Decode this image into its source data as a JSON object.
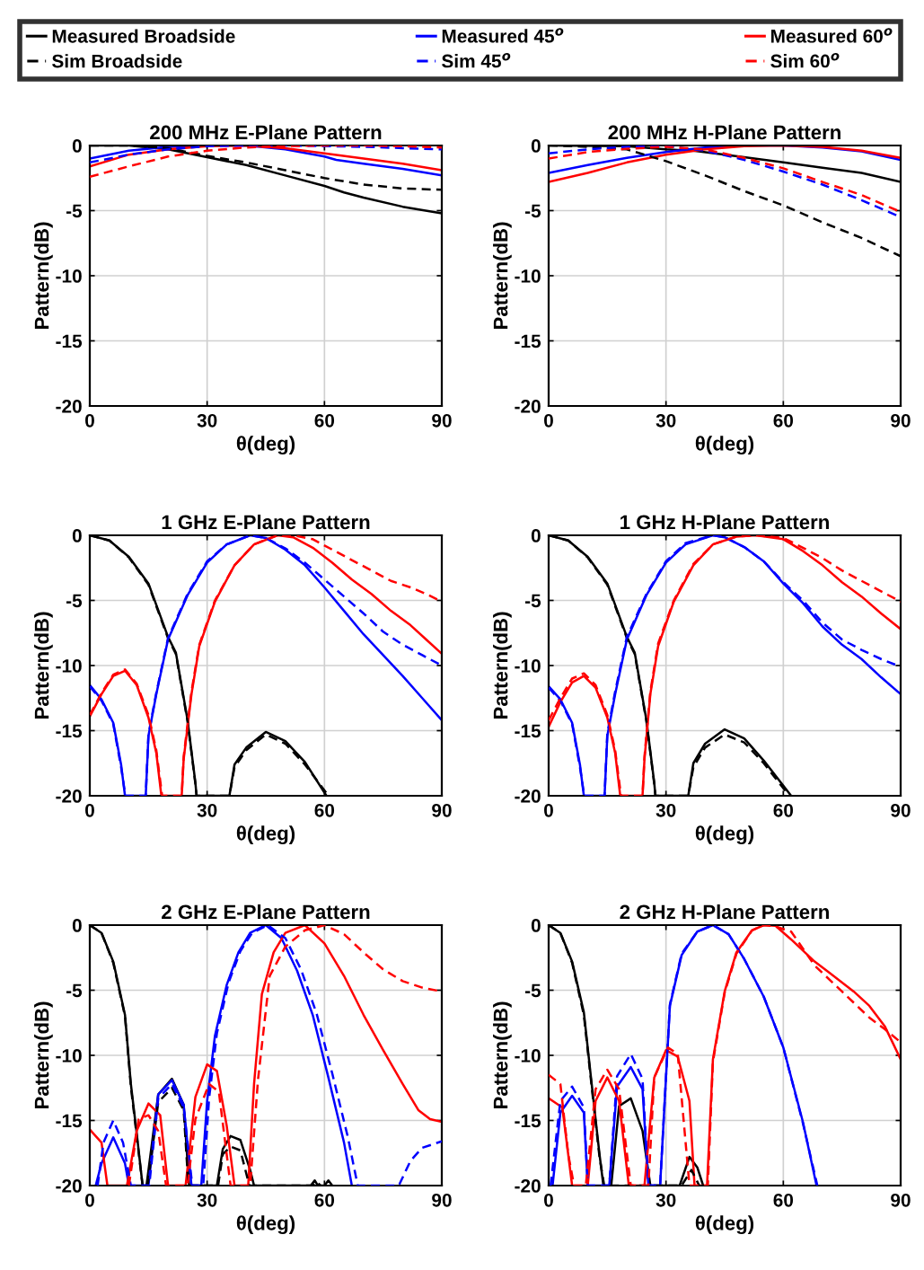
{
  "chart_data": [
    {
      "type": "line",
      "title": "200 MHz E-Plane Pattern",
      "xlabel": "θ(deg)",
      "ylabel": "Pattern(dB)",
      "xlim": [
        0,
        90
      ],
      "ylim": [
        -20,
        0
      ],
      "xticks": [
        0,
        30,
        60,
        90
      ],
      "yticks": [
        -20,
        -15,
        -10,
        -5,
        0
      ],
      "grid": true,
      "legend": "top",
      "series": [
        {
          "name": "Measured Broadside",
          "color": "#000000",
          "line_style": "solid",
          "x": [
            0,
            10,
            20,
            30,
            40,
            50,
            60,
            65,
            70,
            80,
            90
          ],
          "values": [
            0,
            0,
            -0.3,
            -0.9,
            -1.5,
            -2.3,
            -3.1,
            -3.6,
            -4.0,
            -4.7,
            -5.2
          ]
        },
        {
          "name": "Sim Broadside",
          "color": "#000000",
          "line_style": "dashed",
          "x": [
            0,
            10,
            20,
            30,
            40,
            50,
            60,
            70,
            80,
            90
          ],
          "values": [
            0,
            0,
            -0.2,
            -0.8,
            -1.3,
            -1.9,
            -2.5,
            -3.0,
            -3.3,
            -3.4
          ]
        },
        {
          "name": "Measured 45$^{o}$",
          "color": "#0000ff",
          "line_style": "solid",
          "x": [
            0,
            10,
            20,
            30,
            40,
            50,
            60,
            63,
            70,
            80,
            90
          ],
          "values": [
            -1.0,
            -0.4,
            -0.1,
            0,
            0,
            -0.3,
            -0.85,
            -1.1,
            -1.4,
            -1.8,
            -2.3
          ]
        },
        {
          "name": "Sim 45$^{o}$",
          "color": "#0000ff",
          "line_style": "dashed",
          "x": [
            0,
            10,
            20,
            30,
            40,
            50,
            60,
            70,
            80,
            90
          ],
          "values": [
            -1.3,
            -0.7,
            -0.3,
            -0.05,
            0,
            0,
            -0.05,
            -0.1,
            -0.2,
            -0.3
          ]
        },
        {
          "name": "Measured 60$^{o}$",
          "color": "#ff0000",
          "line_style": "solid",
          "x": [
            0,
            10,
            20,
            30,
            40,
            50,
            60,
            70,
            80,
            90
          ],
          "values": [
            -1.6,
            -0.7,
            -0.3,
            -0.05,
            0,
            -0.2,
            -0.6,
            -1.0,
            -1.4,
            -1.9
          ]
        },
        {
          "name": "Sim 60$^{o}$",
          "color": "#ff0000",
          "line_style": "dashed",
          "x": [
            0,
            10,
            20,
            30,
            40,
            50,
            60,
            70,
            80,
            90
          ],
          "values": [
            -2.4,
            -1.6,
            -0.85,
            -0.4,
            -0.15,
            -0.05,
            0,
            0,
            -0.05,
            -0.15
          ]
        }
      ]
    },
    {
      "type": "line",
      "title": "200 MHz H-Plane Pattern",
      "xlabel": "θ(deg)",
      "ylabel": "Pattern(dB)",
      "xlim": [
        0,
        90
      ],
      "ylim": [
        -20,
        0
      ],
      "xticks": [
        0,
        30,
        60,
        90
      ],
      "yticks": [
        -20,
        -15,
        -10,
        -5,
        0
      ],
      "grid": true,
      "series": [
        {
          "name": "Measured Broadside",
          "color": "#000000",
          "line_style": "solid",
          "x": [
            0,
            20,
            30,
            37,
            50,
            60,
            70,
            80,
            90
          ],
          "values": [
            0,
            -0.05,
            -0.3,
            -0.4,
            -0.9,
            -1.3,
            -1.7,
            -2.1,
            -2.8
          ]
        },
        {
          "name": "Sim Broadside",
          "color": "#000000",
          "line_style": "dashed",
          "x": [
            0,
            10,
            20,
            30,
            40,
            50,
            60,
            70,
            80,
            90
          ],
          "values": [
            0,
            -0.1,
            -0.3,
            -1.2,
            -2.3,
            -3.5,
            -4.6,
            -5.9,
            -7.1,
            -8.5
          ]
        },
        {
          "name": "Measured 45$^{o}$",
          "color": "#0000ff",
          "line_style": "solid",
          "x": [
            0,
            10,
            20,
            30,
            40,
            50,
            60,
            70,
            80,
            90
          ],
          "values": [
            -2.1,
            -1.5,
            -0.95,
            -0.5,
            -0.15,
            0,
            0,
            -0.15,
            -0.45,
            -1.1
          ]
        },
        {
          "name": "Sim 45$^{o}$",
          "color": "#0000ff",
          "line_style": "dashed",
          "x": [
            0,
            10,
            20,
            30,
            40,
            50,
            60,
            70,
            80,
            90
          ],
          "values": [
            -0.6,
            -0.3,
            -0.1,
            -0.05,
            -0.4,
            -1.1,
            -2.0,
            -3.0,
            -4.2,
            -5.5
          ]
        },
        {
          "name": "Measured 60$^{o}$",
          "color": "#ff0000",
          "line_style": "solid",
          "x": [
            0,
            10,
            20,
            30,
            40,
            50,
            60,
            70,
            80,
            90
          ],
          "values": [
            -2.8,
            -2.1,
            -1.3,
            -0.7,
            -0.3,
            -0.05,
            0,
            -0.1,
            -0.4,
            -0.95
          ]
        },
        {
          "name": "Sim 60$^{o}$",
          "color": "#ff0000",
          "line_style": "dashed",
          "x": [
            0,
            10,
            20,
            30,
            40,
            50,
            60,
            70,
            80,
            90
          ],
          "values": [
            -1.0,
            -0.5,
            -0.25,
            -0.1,
            -0.3,
            -0.95,
            -1.75,
            -2.8,
            -3.8,
            -5.1
          ]
        }
      ]
    },
    {
      "type": "line",
      "title": "1 GHz E-Plane Pattern",
      "xlabel": "θ(deg)",
      "ylabel": "Pattern(dB)",
      "xlim": [
        0,
        90
      ],
      "ylim": [
        -20,
        0
      ],
      "xticks": [
        0,
        30,
        60,
        90
      ],
      "yticks": [
        -20,
        -15,
        -10,
        -5,
        0
      ],
      "grid": true,
      "series": [
        {
          "name": "Measured Broadside",
          "color": "#000000",
          "line_style": "solid",
          "x": [
            0,
            5,
            10,
            15,
            20,
            22,
            25,
            27,
            27.3,
            35.7,
            37,
            40,
            45,
            50,
            55,
            60.5
          ],
          "values": [
            0,
            -0.4,
            -1.65,
            -3.7,
            -7.8,
            -9,
            -14.2,
            -19,
            -20,
            -20,
            -17.6,
            -16.3,
            -15.1,
            -15.8,
            -17.4,
            -20
          ]
        },
        {
          "name": "Sim Broadside",
          "color": "#000000",
          "line_style": "dashed",
          "x": [
            0,
            5,
            10,
            15,
            20,
            22,
            25,
            27,
            27.3,
            35.7,
            37,
            40,
            45,
            50,
            55,
            61
          ],
          "values": [
            0,
            -0.4,
            -1.7,
            -3.8,
            -7.9,
            -9.1,
            -14.3,
            -19.1,
            -20,
            -20,
            -17.8,
            -16.5,
            -15.3,
            -16.0,
            -17.6,
            -20
          ]
        },
        {
          "name": "Measured 45$^{o}$",
          "color": "#0000ff",
          "line_style": "solid",
          "x": [
            0,
            3,
            6,
            8,
            9,
            14.3,
            15,
            17,
            20,
            25,
            30,
            35,
            41,
            45,
            50,
            55,
            60,
            65,
            70,
            75,
            80,
            85,
            90
          ],
          "values": [
            -11.5,
            -12.6,
            -14.4,
            -17.6,
            -20,
            -20,
            -15.4,
            -12.2,
            -8,
            -4.6,
            -2.1,
            -0.7,
            0,
            -0.2,
            -1.1,
            -2.3,
            -4.0,
            -5.8,
            -7.6,
            -9.2,
            -10.8,
            -12.5,
            -14.2
          ]
        },
        {
          "name": "Sim 45$^{o}$",
          "color": "#0000ff",
          "line_style": "dashed",
          "x": [
            0,
            3,
            6,
            8,
            9.1,
            14.3,
            15,
            17,
            20,
            25,
            30,
            35,
            41,
            45,
            50,
            55,
            60,
            65,
            70,
            75,
            80,
            85,
            90
          ],
          "values": [
            -11.6,
            -12.7,
            -14.5,
            -17.8,
            -20,
            -20,
            -15.3,
            -12.1,
            -7.9,
            -4.5,
            -2.0,
            -0.7,
            0,
            -0.2,
            -1.0,
            -2.1,
            -3.4,
            -4.7,
            -6.0,
            -7.4,
            -8.4,
            -9.2,
            -10.0
          ]
        },
        {
          "name": "Measured 60$^{o}$",
          "color": "#ff0000",
          "line_style": "solid",
          "x": [
            0,
            3,
            6,
            9,
            12,
            15,
            17,
            18.3,
            23.5,
            24,
            26,
            28,
            32,
            37,
            42,
            48,
            52,
            57,
            62,
            67,
            72,
            77,
            82,
            86,
            90
          ],
          "values": [
            -13.9,
            -12.2,
            -10.8,
            -10.4,
            -11.5,
            -14,
            -16.7,
            -20,
            -20,
            -17.2,
            -12.2,
            -8.5,
            -5.1,
            -2.3,
            -0.7,
            0,
            -0.15,
            -0.95,
            -2.1,
            -3.4,
            -4.5,
            -5.8,
            -6.9,
            -8.0,
            -9.1
          ]
        },
        {
          "name": "Sim 60$^{o}$",
          "color": "#ff0000",
          "line_style": "dashed",
          "x": [
            0,
            3,
            6,
            9,
            12,
            15,
            17,
            18.5,
            23.5,
            24,
            26,
            28,
            32,
            37,
            42,
            48,
            52,
            57,
            62,
            67,
            72,
            77,
            82,
            86,
            90
          ],
          "values": [
            -13.8,
            -12.1,
            -10.7,
            -10.3,
            -11.4,
            -13.8,
            -16.5,
            -20,
            -20,
            -17.0,
            -12.0,
            -8.4,
            -5.0,
            -2.3,
            -0.7,
            0,
            0,
            -0.3,
            -1.1,
            -1.9,
            -2.7,
            -3.5,
            -4.0,
            -4.5,
            -5.1
          ]
        }
      ]
    },
    {
      "type": "line",
      "title": "1 GHz H-Plane Pattern",
      "xlabel": "θ(deg)",
      "ylabel": "Pattern(dB)",
      "xlim": [
        0,
        90
      ],
      "ylim": [
        -20,
        0
      ],
      "xticks": [
        0,
        30,
        60,
        90
      ],
      "yticks": [
        -20,
        -15,
        -10,
        -5,
        0
      ],
      "grid": true,
      "series": [
        {
          "name": "Measured Broadside",
          "color": "#000000",
          "line_style": "solid",
          "x": [
            0,
            5,
            10,
            15,
            20,
            22,
            25,
            27,
            27.3,
            35.7,
            37,
            40,
            45,
            50,
            55,
            62
          ],
          "values": [
            0,
            -0.4,
            -1.65,
            -3.7,
            -7.8,
            -9,
            -14.2,
            -19,
            -20,
            -20,
            -17.5,
            -16.0,
            -14.9,
            -15.6,
            -17.3,
            -20
          ]
        },
        {
          "name": "Sim Broadside",
          "color": "#000000",
          "line_style": "dashed",
          "x": [
            0,
            5,
            10,
            15,
            20,
            22,
            25,
            27,
            27.3,
            35.7,
            37,
            40,
            45,
            50,
            55,
            61.5
          ],
          "values": [
            0,
            -0.4,
            -1.7,
            -3.8,
            -7.9,
            -9.1,
            -14.3,
            -19.1,
            -20,
            -20,
            -17.8,
            -16.3,
            -15.3,
            -15.9,
            -17.5,
            -20
          ]
        },
        {
          "name": "Measured 45$^{o}$",
          "color": "#0000ff",
          "line_style": "solid",
          "x": [
            0,
            3,
            6,
            8,
            9,
            14.3,
            15,
            17,
            20,
            25,
            30,
            35,
            42,
            45,
            50,
            55,
            60,
            65,
            70,
            75,
            80,
            85,
            90
          ],
          "values": [
            -11.6,
            -12.6,
            -14.4,
            -17.6,
            -20,
            -20,
            -15.4,
            -12.2,
            -8,
            -4.6,
            -2.1,
            -0.7,
            0,
            -0.15,
            -0.9,
            -2.0,
            -3.7,
            -5.2,
            -7.0,
            -8.4,
            -9.5,
            -10.9,
            -12.2
          ]
        },
        {
          "name": "Sim 45$^{o}$",
          "color": "#0000ff",
          "line_style": "dashed",
          "x": [
            0,
            3,
            6,
            8,
            9.1,
            14.3,
            15,
            17,
            20,
            25,
            30,
            35,
            42,
            45,
            50,
            55,
            60,
            65,
            70,
            75,
            80,
            85,
            90
          ],
          "values": [
            -11.7,
            -12.7,
            -14.5,
            -17.8,
            -20,
            -20,
            -15.2,
            -12.0,
            -7.8,
            -4.5,
            -2.0,
            -0.6,
            0,
            -0.15,
            -0.9,
            -2.0,
            -3.6,
            -5.0,
            -6.7,
            -8.0,
            -8.8,
            -9.5,
            -10.1
          ]
        },
        {
          "name": "Measured 60$^{o}$",
          "color": "#ff0000",
          "line_style": "solid",
          "x": [
            0,
            3,
            6,
            9,
            12,
            15,
            17,
            18.3,
            24,
            24.5,
            26,
            28,
            32,
            37,
            42,
            48,
            53,
            60,
            65,
            70,
            75,
            80,
            85,
            90
          ],
          "values": [
            -14.7,
            -12.8,
            -11.3,
            -10.8,
            -11.7,
            -14,
            -16.7,
            -20,
            -20,
            -17.2,
            -12.2,
            -8.5,
            -5.1,
            -2.3,
            -0.7,
            -0.1,
            0,
            -0.3,
            -1.2,
            -2.3,
            -3.6,
            -4.7,
            -6.0,
            -7.2
          ]
        },
        {
          "name": "Sim 60$^{o}$",
          "color": "#ff0000",
          "line_style": "dashed",
          "x": [
            0,
            3,
            6,
            9,
            12,
            15,
            17,
            18.5,
            24,
            24.5,
            26,
            28,
            32,
            37,
            42,
            48,
            53,
            60,
            65,
            70,
            75,
            80,
            85,
            90
          ],
          "values": [
            -14.2,
            -12.5,
            -11,
            -10.6,
            -11.5,
            -13.8,
            -16.5,
            -20,
            -20,
            -17.0,
            -12.0,
            -8.3,
            -5.0,
            -2.2,
            -0.7,
            -0.1,
            0,
            -0.2,
            -0.95,
            -1.75,
            -2.7,
            -3.5,
            -4.3,
            -5.1
          ]
        }
      ]
    },
    {
      "type": "line",
      "title": "2 GHz E-Plane Pattern",
      "xlabel": "θ(deg)",
      "ylabel": "Pattern(dB)",
      "xlim": [
        0,
        90
      ],
      "ylim": [
        -20,
        0
      ],
      "xticks": [
        0,
        30,
        60,
        90
      ],
      "yticks": [
        -20,
        -15,
        -10,
        -5,
        0
      ],
      "grid": true,
      "series": [
        {
          "name": "Measured Broadside",
          "color": "#000000",
          "line_style": "solid",
          "x": [
            0,
            3,
            6,
            9,
            10.5,
            12,
            13.5,
            14.5,
            17.5,
            21,
            24,
            25.4,
            32.5,
            34,
            36,
            38.5,
            41,
            42,
            56.5,
            57.5,
            58.3,
            60,
            61,
            62
          ],
          "values": [
            0,
            -0.6,
            -2.8,
            -6.9,
            -12.2,
            -16,
            -20,
            -20,
            -13,
            -11.8,
            -13.8,
            -20,
            -20,
            -17.2,
            -16.2,
            -16.5,
            -18.8,
            -20,
            -20,
            -19.6,
            -20,
            -20,
            -19.6,
            -20
          ]
        },
        {
          "name": "Sim Broadside",
          "color": "#000000",
          "line_style": "dashed",
          "x": [
            0,
            3,
            6,
            9,
            10.5,
            12,
            13.5,
            14.8,
            17.5,
            21,
            24,
            25.2,
            32.8,
            34,
            36,
            38.5,
            40.8,
            57,
            58,
            59
          ],
          "values": [
            0,
            -0.6,
            -2.9,
            -7.0,
            -12.4,
            -16.2,
            -20,
            -20,
            -13.6,
            -12.5,
            -14.2,
            -20,
            -20,
            -17.6,
            -17.0,
            -17.3,
            -20,
            -20,
            -19.7,
            -20
          ]
        },
        {
          "name": "Measured 45$^{o}$",
          "color": "#0000ff",
          "line_style": "solid",
          "x": [
            1.5,
            3,
            6,
            9,
            10,
            15,
            17.5,
            21,
            24,
            26,
            28.5,
            30,
            32,
            35,
            38,
            41,
            45,
            49,
            53,
            57,
            61,
            65,
            67
          ],
          "values": [
            -20,
            -18.3,
            -16.3,
            -18.3,
            -20,
            -20,
            -13,
            -11.9,
            -13.8,
            -20,
            -20,
            -13.5,
            -8.5,
            -4.6,
            -2.1,
            -0.6,
            0,
            -1.0,
            -3.5,
            -6.9,
            -11.7,
            -16.7,
            -20
          ]
        },
        {
          "name": "Sim 45$^{o}$",
          "color": "#0000ff",
          "line_style": "dashed",
          "x": [
            2,
            3.5,
            6,
            8.5,
            10.5,
            15.2,
            17.5,
            21,
            24,
            26.2,
            29,
            30.5,
            32.5,
            35.5,
            38.5,
            41.5,
            45.5,
            50,
            54,
            58,
            62,
            66,
            68.5,
            79,
            82,
            85,
            90
          ],
          "values": [
            -20,
            -16.7,
            -15.0,
            -16.7,
            -20,
            -20,
            -13.3,
            -12.2,
            -14.0,
            -20,
            -20,
            -13.3,
            -8.3,
            -4.4,
            -2.0,
            -0.6,
            0,
            -1.0,
            -3.4,
            -6.8,
            -11.4,
            -16.3,
            -20,
            -20,
            -18.1,
            -17.1,
            -16.6
          ]
        },
        {
          "name": "Measured 60$^{o}$",
          "color": "#ff0000",
          "line_style": "solid",
          "x": [
            0,
            3,
            4.5,
            9.5,
            12,
            15,
            18,
            20,
            24.5,
            27,
            30,
            32.5,
            35,
            37,
            40.5,
            42,
            44,
            47,
            50,
            55,
            60,
            65,
            70,
            75,
            80,
            84,
            87,
            90
          ],
          "values": [
            -15.7,
            -16.7,
            -20,
            -20,
            -15.8,
            -13.7,
            -14.6,
            -20,
            -20,
            -13.2,
            -10.7,
            -11.2,
            -15.4,
            -20,
            -20,
            -12.2,
            -5.3,
            -2.1,
            -0.6,
            0,
            -1.4,
            -3.9,
            -6.9,
            -9.6,
            -12.2,
            -14.2,
            -14.9,
            -15.1
          ]
        },
        {
          "name": "Sim 60$^{o}$",
          "color": "#ff0000",
          "line_style": "dashed",
          "x": [
            10,
            12.5,
            15,
            17.5,
            19.5,
            25,
            27,
            30.5,
            33,
            36,
            41,
            43,
            46,
            50,
            55,
            60,
            65,
            70,
            75,
            80,
            85,
            90
          ],
          "values": [
            -20,
            -14.9,
            -14.6,
            -15.8,
            -20,
            -20,
            -14.9,
            -12.2,
            -12.8,
            -20,
            -20,
            -11.9,
            -3.9,
            -1.65,
            -0.4,
            0,
            -0.7,
            -2.1,
            -3.4,
            -4.3,
            -4.8,
            -5.1
          ]
        }
      ]
    },
    {
      "type": "line",
      "title": "2 GHz H-Plane Pattern",
      "xlabel": "θ(deg)",
      "ylabel": "Pattern(dB)",
      "xlim": [
        0,
        90
      ],
      "ylim": [
        -20,
        0
      ],
      "xticks": [
        0,
        30,
        60,
        90
      ],
      "yticks": [
        -20,
        -15,
        -10,
        -5,
        0
      ],
      "grid": true,
      "series": [
        {
          "name": "Measured Broadside",
          "color": "#000000",
          "line_style": "solid",
          "x": [
            0,
            3,
            6,
            9,
            11,
            13,
            14,
            16,
            18,
            21,
            24,
            26,
            33.5,
            36,
            38,
            39.5
          ],
          "values": [
            0,
            -0.6,
            -2.8,
            -6.7,
            -12.2,
            -17.6,
            -20,
            -20,
            -13.9,
            -13.3,
            -15.8,
            -20,
            -20,
            -17.8,
            -18.6,
            -20
          ]
        },
        {
          "name": "Sim Broadside",
          "color": "#000000",
          "line_style": "dashed",
          "x": [
            0,
            3,
            6,
            9,
            11,
            13,
            14.2,
            34,
            36.5,
            38.5
          ],
          "values": [
            0,
            -0.6,
            -2.9,
            -6.9,
            -12.4,
            -17.8,
            -20,
            -20,
            -18.8,
            -20
          ]
        },
        {
          "name": "Measured 45$^{o}$",
          "color": "#0000ff",
          "line_style": "solid",
          "x": [
            1,
            3,
            6,
            9,
            10,
            15.5,
            17.5,
            21,
            24,
            25.5,
            28.5,
            31,
            34,
            38,
            42,
            46,
            50,
            55,
            60,
            65,
            68.5
          ],
          "values": [
            -20,
            -14.4,
            -13.1,
            -14.4,
            -20,
            -20,
            -12.4,
            -10.9,
            -12.6,
            -20,
            -20,
            -6.2,
            -2.3,
            -0.5,
            0,
            -0.7,
            -2.6,
            -5.5,
            -9.4,
            -15.1,
            -20
          ]
        },
        {
          "name": "Sim 45$^{o}$",
          "color": "#0000ff",
          "line_style": "dashed",
          "x": [
            0.5,
            3,
            6,
            9,
            10,
            15.5,
            17.5,
            21,
            24,
            25.5,
            28.5,
            31,
            34,
            38,
            42,
            46,
            50,
            55,
            60,
            65,
            68.7
          ],
          "values": [
            -20,
            -13.5,
            -12.4,
            -14,
            -20,
            -20,
            -11.6,
            -9.9,
            -11.8,
            -20,
            -20,
            -6.1,
            -2.2,
            -0.5,
            0,
            -0.7,
            -2.6,
            -5.5,
            -9.4,
            -15.2,
            -20
          ]
        },
        {
          "name": "Measured 60$^{o}$",
          "color": "#ff0000",
          "line_style": "solid",
          "x": [
            0,
            3.5,
            6,
            10,
            12,
            15,
            18,
            20.5,
            24.5,
            27,
            30,
            33,
            36,
            37.3,
            40.5,
            42,
            45,
            48,
            52,
            55,
            58,
            62,
            68,
            72,
            78,
            82,
            86,
            90
          ],
          "values": [
            -13.3,
            -14,
            -20,
            -20,
            -13.5,
            -11.7,
            -13.5,
            -20,
            -20,
            -11.7,
            -9.6,
            -10.1,
            -13.5,
            -20,
            -20,
            -10.3,
            -5.1,
            -2.1,
            -0.4,
            0,
            -0.05,
            -1.1,
            -2.8,
            -3.7,
            -5.1,
            -6.2,
            -7.8,
            -10.3
          ]
        },
        {
          "name": "Sim 60$^{o}$",
          "color": "#ff0000",
          "line_style": "dashed",
          "x": [
            0,
            3,
            5,
            6.5,
            9.5,
            12,
            15,
            18,
            21,
            25.5,
            27,
            30.5,
            33,
            36,
            40.7,
            42,
            45,
            48,
            52,
            55,
            58,
            62,
            68,
            75,
            82,
            86,
            90
          ],
          "values": [
            -11.5,
            -12.2,
            -17.6,
            -20,
            -20,
            -12.6,
            -11.1,
            -12.6,
            -20,
            -20,
            -11.7,
            -9.4,
            -9.9,
            -20,
            -20,
            -10.5,
            -5.2,
            -2.2,
            -0.4,
            0,
            -0.1,
            -0.5,
            -3.1,
            -5.1,
            -7.1,
            -8.0,
            -9.0
          ]
        }
      ]
    }
  ]
}
